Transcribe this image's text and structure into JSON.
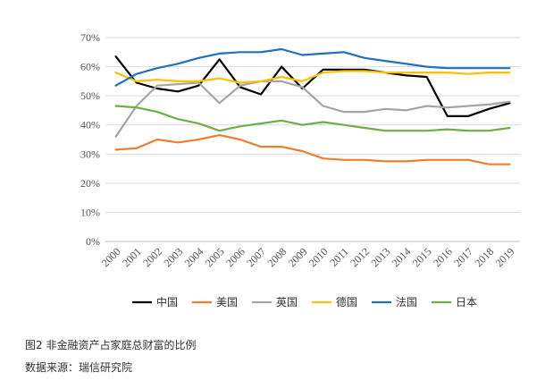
{
  "caption": "图2 非金融资产占家庭总财富的比例",
  "source": "数据来源：瑞信研究院",
  "chart_data": {
    "type": "line",
    "x": [
      "2000",
      "2001",
      "2002",
      "2003",
      "2004",
      "2005",
      "2006",
      "2007",
      "2008",
      "2009",
      "2010",
      "2011",
      "2012",
      "2013",
      "2014",
      "2015",
      "2016",
      "2017",
      "2018",
      "2019"
    ],
    "yticks": [
      "0%",
      "10%",
      "20%",
      "30%",
      "40%",
      "50%",
      "60%",
      "70%"
    ],
    "ylim": [
      0,
      70
    ],
    "grid": "horizontal",
    "legend_position": "bottom",
    "series": [
      {
        "name": "中国",
        "color": "#000000",
        "values": [
          63.5,
          54.5,
          52.5,
          51.5,
          53.5,
          62.5,
          53,
          50.5,
          60,
          52.5,
          59,
          59,
          59,
          58,
          57,
          56.5,
          43,
          43,
          45.5,
          47.5
        ]
      },
      {
        "name": "美国",
        "color": "#ED7D31",
        "values": [
          31.5,
          32,
          35,
          34,
          35,
          36.5,
          35,
          32.5,
          32.5,
          31,
          28.5,
          28,
          28,
          27.5,
          27.5,
          28,
          28,
          28,
          26.5,
          26.5
        ]
      },
      {
        "name": "英国",
        "color": "#A5A5A5",
        "values": [
          36,
          46.5,
          53.5,
          54,
          54.5,
          47.5,
          53.5,
          55,
          55,
          53,
          46.5,
          44.5,
          44.5,
          45.5,
          45,
          46.5,
          46,
          46.5,
          47,
          48
        ]
      },
      {
        "name": "德国",
        "color": "#FFC000",
        "values": [
          58,
          55,
          55.5,
          55,
          55,
          56,
          54.5,
          55,
          56.5,
          55,
          58,
          58.5,
          58.5,
          58,
          58,
          58,
          58,
          57.5,
          58,
          58
        ]
      },
      {
        "name": "法国",
        "color": "#1F70B8",
        "values": [
          53.5,
          57.5,
          59.5,
          61,
          63,
          64.5,
          65,
          65,
          66,
          64,
          64.5,
          65,
          63,
          62,
          61,
          60,
          59.5,
          59.5,
          59.5,
          59.5
        ]
      },
      {
        "name": "日本",
        "color": "#70AD47",
        "values": [
          46.5,
          46,
          44.5,
          42,
          40.5,
          38,
          39.5,
          40.5,
          41.5,
          40,
          41,
          40,
          39,
          38,
          38,
          38,
          38.5,
          38,
          38,
          39
        ]
      }
    ]
  }
}
